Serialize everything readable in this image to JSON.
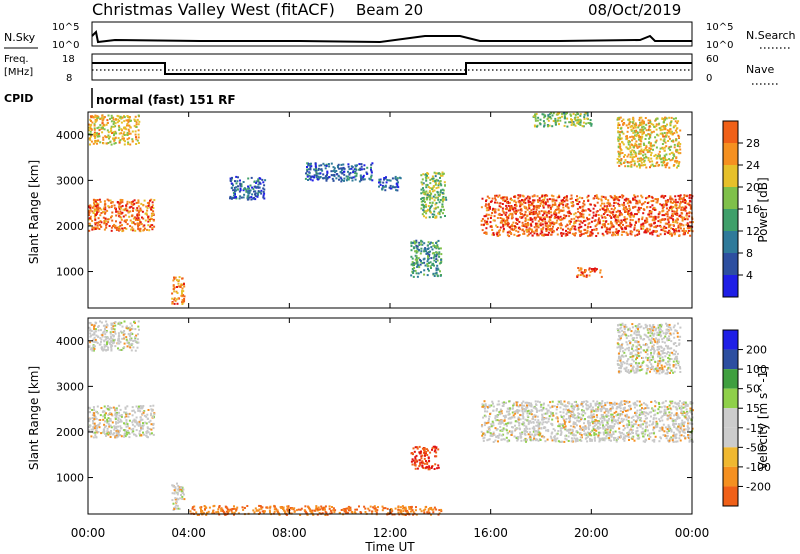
{
  "header": {
    "title": "Christmas Valley West (fitACF)",
    "beam": "Beam 20",
    "date": "08/Oct/2019"
  },
  "noise_panel": {
    "left_label": "N.Sky",
    "right_label": "N.Search",
    "left_ticks": [
      "10^5",
      "10^0"
    ],
    "right_ticks": [
      "10^5",
      "10^0"
    ]
  },
  "freq_panel": {
    "left_label_1": "Freq.",
    "left_label_2": "[MHz]",
    "right_label": "Nave",
    "left_ticks": [
      "18",
      "8"
    ],
    "right_ticks": [
      "60",
      "0"
    ]
  },
  "cpid_panel": {
    "label": "CPID",
    "text": "normal (fast) 151 RF"
  },
  "colors": {
    "power_scale": [
      "#1f1fe6",
      "#2d4fa0",
      "#2f7a9a",
      "#3f9f6a",
      "#7fc04a",
      "#e6c02a",
      "#f59020",
      "#f06018",
      "#e01010"
    ],
    "velocity_scale": [
      "#e01010",
      "#f06018",
      "#f59020",
      "#f0b830",
      "#cccccc",
      "#cccccc",
      "#8fd04a",
      "#3f9f3f",
      "#2d4fa0",
      "#1f1fe6"
    ]
  },
  "chart_data": [
    {
      "type": "heatmap",
      "name": "Power",
      "ylabel": "Slant Range [km]",
      "y_ticks": [
        1000,
        2000,
        3000,
        4000
      ],
      "ylim": [
        200,
        4500
      ],
      "x_ticks": [
        "00:00",
        "04:00",
        "08:00",
        "12:00",
        "16:00",
        "20:00",
        "00:00"
      ],
      "xlim_hours": [
        0,
        24
      ],
      "colorbar": {
        "label": "Power [dB]",
        "ticks": [
          "4",
          "8",
          "12",
          "16",
          "20",
          "24",
          "28"
        ]
      },
      "regions": [
        {
          "t0": 0.0,
          "t1": 2.6,
          "r0": 1900,
          "r1": 2600,
          "value": 25
        },
        {
          "t0": 0.0,
          "t1": 2.0,
          "r0": 3800,
          "r1": 4450,
          "value": 20
        },
        {
          "t0": 3.3,
          "t1": 3.8,
          "r0": 300,
          "r1": 900,
          "value": 24
        },
        {
          "t0": 5.6,
          "t1": 7.0,
          "r0": 2600,
          "r1": 3100,
          "value": 8
        },
        {
          "t0": 8.6,
          "t1": 11.3,
          "r0": 3000,
          "r1": 3400,
          "value": 8
        },
        {
          "t0": 11.5,
          "t1": 12.4,
          "r0": 2800,
          "r1": 3100,
          "value": 8
        },
        {
          "t0": 12.8,
          "t1": 14.0,
          "r0": 900,
          "r1": 1700,
          "value": 12
        },
        {
          "t0": 13.2,
          "t1": 14.2,
          "r0": 2200,
          "r1": 3200,
          "value": 16
        },
        {
          "t0": 15.6,
          "t1": 24.0,
          "r0": 1800,
          "r1": 2700,
          "value": 26
        },
        {
          "t0": 19.4,
          "t1": 20.4,
          "r0": 900,
          "r1": 1100,
          "value": 26
        },
        {
          "t0": 21.0,
          "t1": 23.5,
          "r0": 3300,
          "r1": 4400,
          "value": 20
        },
        {
          "t0": 17.6,
          "t1": 20.0,
          "r0": 4200,
          "r1": 4500,
          "value": 16
        }
      ]
    },
    {
      "type": "heatmap",
      "name": "Velocity",
      "ylabel": "Slant Range [km]",
      "xlabel": "Time UT",
      "y_ticks": [
        1000,
        2000,
        3000,
        4000
      ],
      "ylim": [
        200,
        4500
      ],
      "x_ticks": [
        "00:00",
        "04:00",
        "08:00",
        "12:00",
        "16:00",
        "20:00",
        "00:00"
      ],
      "xlim_hours": [
        0,
        24
      ],
      "colorbar": {
        "label": "Velocity [m s^-1]",
        "ticks": [
          "200",
          "100",
          "50",
          "15",
          "-15",
          "-50",
          "-100",
          "-200"
        ]
      },
      "regions": [
        {
          "t0": 0.0,
          "t1": 2.6,
          "r0": 1900,
          "r1": 2600,
          "value": 0
        },
        {
          "t0": 0.0,
          "t1": 2.0,
          "r0": 3800,
          "r1": 4450,
          "value": 0
        },
        {
          "t0": 3.3,
          "t1": 3.8,
          "r0": 300,
          "r1": 900,
          "value": 0
        },
        {
          "t0": 4.0,
          "t1": 14.0,
          "r0": 200,
          "r1": 400,
          "value": -50
        },
        {
          "t0": 12.8,
          "t1": 13.9,
          "r0": 1200,
          "r1": 1700,
          "value": -100
        },
        {
          "t0": 15.6,
          "t1": 24.0,
          "r0": 1800,
          "r1": 2700,
          "value": 0
        },
        {
          "t0": 21.0,
          "t1": 23.5,
          "r0": 3300,
          "r1": 4400,
          "value": 0
        }
      ]
    }
  ]
}
